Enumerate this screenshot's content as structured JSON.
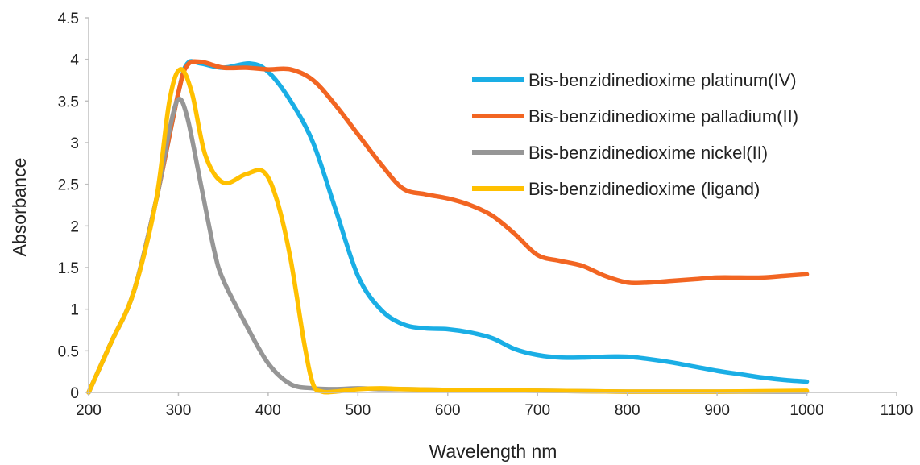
{
  "chart_data": {
    "type": "line",
    "title": "",
    "xlabel": "Wavelength nm",
    "ylabel": "Absorbance",
    "xlim": [
      200,
      1100
    ],
    "ylim": [
      0,
      4.5
    ],
    "x_ticks": [
      "200",
      "300",
      "400",
      "500",
      "600",
      "700",
      "800",
      "900",
      "1000",
      "1100"
    ],
    "y_ticks": [
      "0",
      "0.5",
      "1",
      "1.5",
      "2",
      "2.5",
      "3",
      "3.5",
      "4",
      "4.5"
    ],
    "grid": false,
    "legend_position": "top-right",
    "series": [
      {
        "name": "Bis-benzidinedioxime platinum(IV)",
        "color": "#1aaee5",
        "points": [
          [
            200,
            0
          ],
          [
            225,
            0.6
          ],
          [
            250,
            1.2
          ],
          [
            275,
            2.3
          ],
          [
            300,
            3.6
          ],
          [
            310,
            3.95
          ],
          [
            325,
            3.95
          ],
          [
            350,
            3.9
          ],
          [
            380,
            3.95
          ],
          [
            400,
            3.85
          ],
          [
            425,
            3.5
          ],
          [
            450,
            3.0
          ],
          [
            475,
            2.2
          ],
          [
            500,
            1.4
          ],
          [
            525,
            1.0
          ],
          [
            550,
            0.82
          ],
          [
            575,
            0.77
          ],
          [
            600,
            0.76
          ],
          [
            625,
            0.72
          ],
          [
            650,
            0.65
          ],
          [
            675,
            0.52
          ],
          [
            700,
            0.45
          ],
          [
            725,
            0.42
          ],
          [
            750,
            0.42
          ],
          [
            775,
            0.43
          ],
          [
            800,
            0.43
          ],
          [
            825,
            0.4
          ],
          [
            850,
            0.36
          ],
          [
            875,
            0.31
          ],
          [
            900,
            0.26
          ],
          [
            925,
            0.22
          ],
          [
            950,
            0.18
          ],
          [
            975,
            0.15
          ],
          [
            1000,
            0.13
          ]
        ]
      },
      {
        "name": "Bis-benzidinedioxime palladium(II)",
        "color": "#f26522",
        "points": [
          [
            200,
            0
          ],
          [
            225,
            0.6
          ],
          [
            250,
            1.2
          ],
          [
            275,
            2.3
          ],
          [
            300,
            3.6
          ],
          [
            310,
            3.93
          ],
          [
            325,
            3.97
          ],
          [
            350,
            3.9
          ],
          [
            375,
            3.9
          ],
          [
            400,
            3.88
          ],
          [
            425,
            3.88
          ],
          [
            450,
            3.75
          ],
          [
            475,
            3.45
          ],
          [
            500,
            3.1
          ],
          [
            525,
            2.75
          ],
          [
            550,
            2.45
          ],
          [
            575,
            2.38
          ],
          [
            600,
            2.33
          ],
          [
            625,
            2.25
          ],
          [
            650,
            2.12
          ],
          [
            675,
            1.9
          ],
          [
            700,
            1.65
          ],
          [
            725,
            1.58
          ],
          [
            750,
            1.52
          ],
          [
            775,
            1.4
          ],
          [
            800,
            1.32
          ],
          [
            825,
            1.32
          ],
          [
            850,
            1.34
          ],
          [
            875,
            1.36
          ],
          [
            900,
            1.38
          ],
          [
            925,
            1.38
          ],
          [
            950,
            1.38
          ],
          [
            975,
            1.4
          ],
          [
            1000,
            1.42
          ]
        ]
      },
      {
        "name": "Bis-benzidinedioxime nickel(II)",
        "color": "#969696",
        "points": [
          [
            200,
            0
          ],
          [
            225,
            0.6
          ],
          [
            250,
            1.2
          ],
          [
            275,
            2.3
          ],
          [
            290,
            3.15
          ],
          [
            300,
            3.52
          ],
          [
            310,
            3.3
          ],
          [
            325,
            2.5
          ],
          [
            340,
            1.7
          ],
          [
            350,
            1.35
          ],
          [
            375,
            0.82
          ],
          [
            400,
            0.35
          ],
          [
            425,
            0.1
          ],
          [
            450,
            0.05
          ],
          [
            475,
            0.04
          ],
          [
            500,
            0.05
          ],
          [
            525,
            0.04
          ],
          [
            550,
            0.04
          ],
          [
            600,
            0.03
          ],
          [
            700,
            0.02
          ],
          [
            800,
            0.01
          ],
          [
            900,
            0.01
          ],
          [
            1000,
            0.01
          ]
        ]
      },
      {
        "name": "Bis-benzidinedioxime (ligand)",
        "color": "#ffc000",
        "points": [
          [
            200,
            0
          ],
          [
            225,
            0.6
          ],
          [
            250,
            1.2
          ],
          [
            275,
            2.3
          ],
          [
            290,
            3.5
          ],
          [
            302,
            3.88
          ],
          [
            315,
            3.6
          ],
          [
            330,
            2.85
          ],
          [
            350,
            2.52
          ],
          [
            375,
            2.62
          ],
          [
            395,
            2.65
          ],
          [
            410,
            2.3
          ],
          [
            425,
            1.6
          ],
          [
            440,
            0.6
          ],
          [
            450,
            0.1
          ],
          [
            460,
            0.01
          ],
          [
            475,
            0.01
          ],
          [
            500,
            0.04
          ],
          [
            525,
            0.05
          ],
          [
            550,
            0.04
          ],
          [
            600,
            0.03
          ],
          [
            700,
            0.02
          ],
          [
            800,
            0.01
          ],
          [
            900,
            0.01
          ],
          [
            1000,
            0.02
          ]
        ]
      }
    ]
  }
}
